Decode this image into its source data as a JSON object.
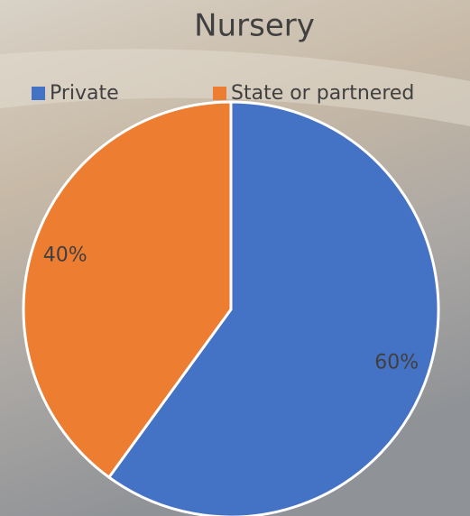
{
  "chart_data": {
    "type": "pie",
    "title": "Nursery",
    "categories": [
      "Private",
      "State or partnered"
    ],
    "values": [
      60,
      40
    ],
    "value_labels": [
      "60%",
      "40%"
    ],
    "colors": [
      "#4472c4",
      "#ed7d31"
    ]
  }
}
